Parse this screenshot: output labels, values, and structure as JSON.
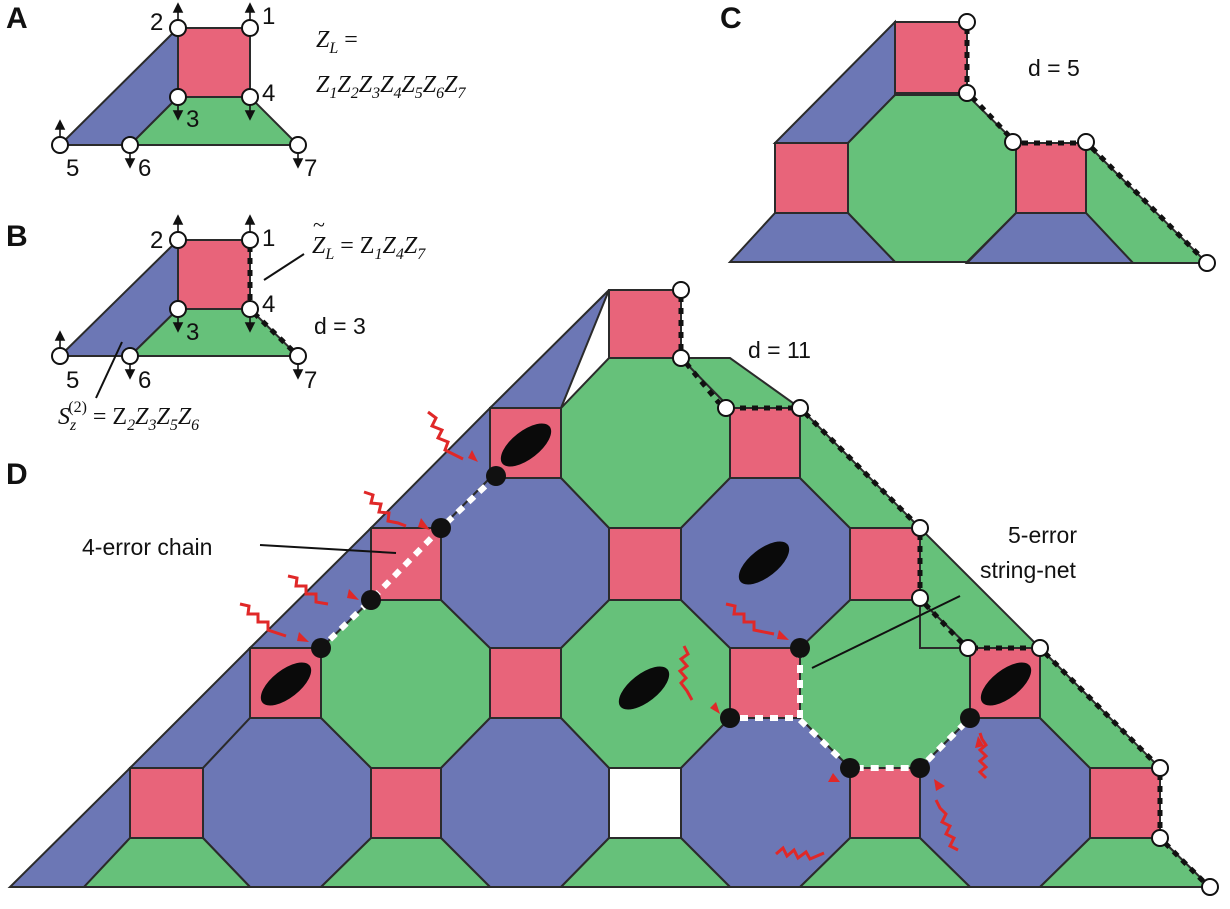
{
  "panels": {
    "a": {
      "letter": "A",
      "equation_lhs": "Z",
      "equation_lhs_sub": "L",
      "equation_eq": " =",
      "equation_rhs": [
        "Z",
        "1",
        "Z",
        "2",
        "Z",
        "3",
        "Z",
        "4",
        "Z",
        "5",
        "Z",
        "6",
        "Z",
        "7"
      ],
      "qubits": [
        "1",
        "2",
        "3",
        "4",
        "5",
        "6",
        "7"
      ]
    },
    "b": {
      "letter": "B",
      "logical": {
        "lhs": "Z",
        "lhs_sub": "L",
        "rhs": "= Z",
        "terms": [
          "1",
          "4",
          "7"
        ]
      },
      "stabilizer": {
        "lhs": "S",
        "lhs_sub": "z",
        "lhs_sup": "(2)",
        "rhs": "= Z",
        "terms": [
          "2",
          "3",
          "5",
          "6"
        ]
      },
      "distance": "d = 3",
      "qubits": [
        "1",
        "2",
        "3",
        "4",
        "5",
        "6",
        "7"
      ]
    },
    "c": {
      "letter": "C",
      "distance": "d = 5"
    },
    "d": {
      "letter": "D",
      "distance": "d = 11",
      "annotation_chain": "4-error chain",
      "annotation_net_line1": "5-error",
      "annotation_net_line2": "string-net"
    }
  },
  "colors": {
    "red_plaquette": "#e8647a",
    "green_plaquette": "#66c17a",
    "blue_plaquette": "#6c77b5",
    "error_arrow": "#e02828",
    "outline": "#2b2b2b"
  }
}
